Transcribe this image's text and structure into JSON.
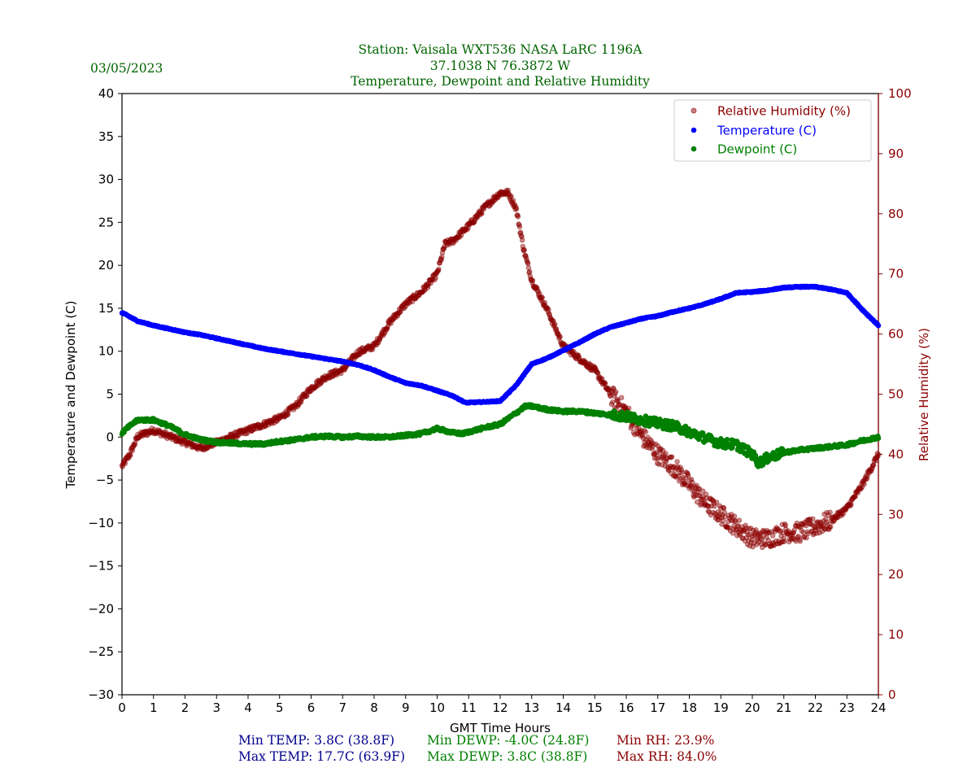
{
  "header": {
    "title_line1": "Station:  Vaisala WXT536  NASA LaRC 1196A",
    "title_line2": "37.1038 N 76.3872 W",
    "title_line3": "Temperature, Dewpoint and Relative Humidity",
    "date": "03/05/2023"
  },
  "stats": {
    "min_temp": "Min TEMP: 3.8C (38.8F)",
    "max_temp": "Max TEMP: 17.7C (63.9F)",
    "min_dewp": "Min DEWP: -4.0C (24.8F)",
    "max_dewp": "Max DEWP: 3.8C (38.8F)",
    "min_rh": "Min RH: 23.9%",
    "max_rh": "Max RH: 84.0%"
  },
  "colors": {
    "temperature": "#0000ff",
    "dewpoint": "#008000",
    "humidity": "#8b0000",
    "header_text": "#006400",
    "stats_temp": "#00008b"
  },
  "chart_data": {
    "type": "scatter",
    "xlabel": "GMT Time Hours",
    "ylabel_left": "Temperature and Dewpoint (C)",
    "ylabel_right": "Relative Humidity (%)",
    "xlim": [
      0,
      24
    ],
    "ylim_left": [
      -30,
      40
    ],
    "ylim_right": [
      0,
      100
    ],
    "x_ticks": [
      0,
      1,
      2,
      3,
      4,
      5,
      6,
      7,
      8,
      9,
      10,
      11,
      12,
      13,
      14,
      15,
      16,
      17,
      18,
      19,
      20,
      21,
      22,
      23,
      24
    ],
    "y_ticks_left": [
      -30,
      -25,
      -20,
      -15,
      -10,
      -5,
      0,
      5,
      10,
      15,
      20,
      25,
      30,
      35,
      40
    ],
    "y_ticks_right": [
      0,
      10,
      20,
      30,
      40,
      50,
      60,
      70,
      80,
      90,
      100
    ],
    "legend_position": "top-right",
    "series": [
      {
        "name": "Relative Humidity (%)",
        "axis": "right",
        "x": [
          0,
          0.25,
          0.5,
          1,
          1.5,
          2,
          2.5,
          3,
          3.5,
          4,
          4.5,
          5,
          5.5,
          6,
          6.5,
          7,
          7.5,
          8,
          8.5,
          9,
          9.5,
          10,
          10.25,
          10.5,
          11,
          11.5,
          12,
          12.25,
          12.5,
          12.75,
          13,
          13.5,
          14,
          14.5,
          15,
          15.5,
          16,
          16.5,
          17,
          17.5,
          18,
          18.5,
          19,
          19.5,
          20,
          20.5,
          21,
          21.5,
          22,
          22.5,
          23,
          23.5,
          24
        ],
        "y": [
          38,
          40,
          43,
          44,
          43,
          42,
          41,
          42,
          43,
          44,
          45,
          46,
          48,
          51,
          53,
          54,
          57,
          58,
          62,
          65,
          67,
          70,
          75,
          75.5,
          78,
          81,
          83.5,
          83.5,
          81,
          74,
          69,
          64,
          58,
          56,
          54,
          50,
          47,
          43,
          40,
          38,
          35,
          32,
          30,
          28,
          26,
          26,
          27,
          27,
          28,
          29,
          31,
          35,
          40
        ]
      },
      {
        "name": "Temperature (C)",
        "axis": "left",
        "x": [
          0,
          0.25,
          0.5,
          1,
          1.5,
          2,
          2.5,
          3,
          3.5,
          4,
          4.5,
          5,
          5.5,
          6,
          6.5,
          7,
          7.5,
          8,
          8.5,
          9,
          9.5,
          10,
          10.5,
          10.9,
          11.5,
          12,
          12.5,
          13,
          13.5,
          14,
          14.5,
          15,
          15.5,
          16,
          16.5,
          17,
          17.5,
          18,
          18.5,
          19,
          19.5,
          20,
          20.5,
          21,
          21.5,
          22,
          22.5,
          23,
          23.5,
          24
        ],
        "y": [
          14.5,
          14,
          13.5,
          13,
          12.6,
          12.2,
          11.9,
          11.5,
          11.1,
          10.7,
          10.3,
          10,
          9.7,
          9.4,
          9.1,
          8.8,
          8.4,
          7.8,
          7,
          6.3,
          6,
          5.4,
          4.8,
          4,
          4.1,
          4.2,
          6,
          8.5,
          9.2,
          10.1,
          11,
          12,
          12.8,
          13.3,
          13.8,
          14.1,
          14.6,
          15,
          15.5,
          16.1,
          16.8,
          16.9,
          17.1,
          17.4,
          17.5,
          17.5,
          17.2,
          16.8,
          14.8,
          13
        ]
      },
      {
        "name": "Dewpoint (C)",
        "axis": "left",
        "x": [
          0,
          0.25,
          0.5,
          1,
          1.5,
          2,
          2.5,
          3,
          3.5,
          4,
          4.5,
          5,
          5.5,
          6,
          6.5,
          7,
          7.5,
          8,
          8.5,
          9,
          9.5,
          10,
          10.5,
          10.8,
          11.5,
          12,
          12.5,
          12.8,
          13,
          13.5,
          14,
          14.5,
          15,
          15.5,
          16,
          16.5,
          17,
          17.5,
          18,
          18.5,
          19,
          19.5,
          20,
          20.2,
          20.5,
          21,
          21.5,
          22,
          22.5,
          23,
          23.5,
          24
        ],
        "y": [
          0.5,
          1.3,
          2,
          2,
          1.3,
          0.3,
          -0.3,
          -0.6,
          -0.7,
          -0.8,
          -0.8,
          -0.5,
          -0.3,
          0,
          0.1,
          0,
          0.1,
          0,
          0,
          0.2,
          0.4,
          1,
          0.5,
          0.4,
          1.1,
          1.5,
          2.8,
          3.6,
          3.6,
          3.2,
          3,
          3,
          2.8,
          2.6,
          2.4,
          2,
          1.6,
          1.3,
          0.6,
          -0.1,
          -0.7,
          -0.9,
          -2,
          -3,
          -2.4,
          -1.8,
          -1.5,
          -1.3,
          -1.1,
          -0.9,
          -0.4,
          0
        ]
      }
    ]
  }
}
